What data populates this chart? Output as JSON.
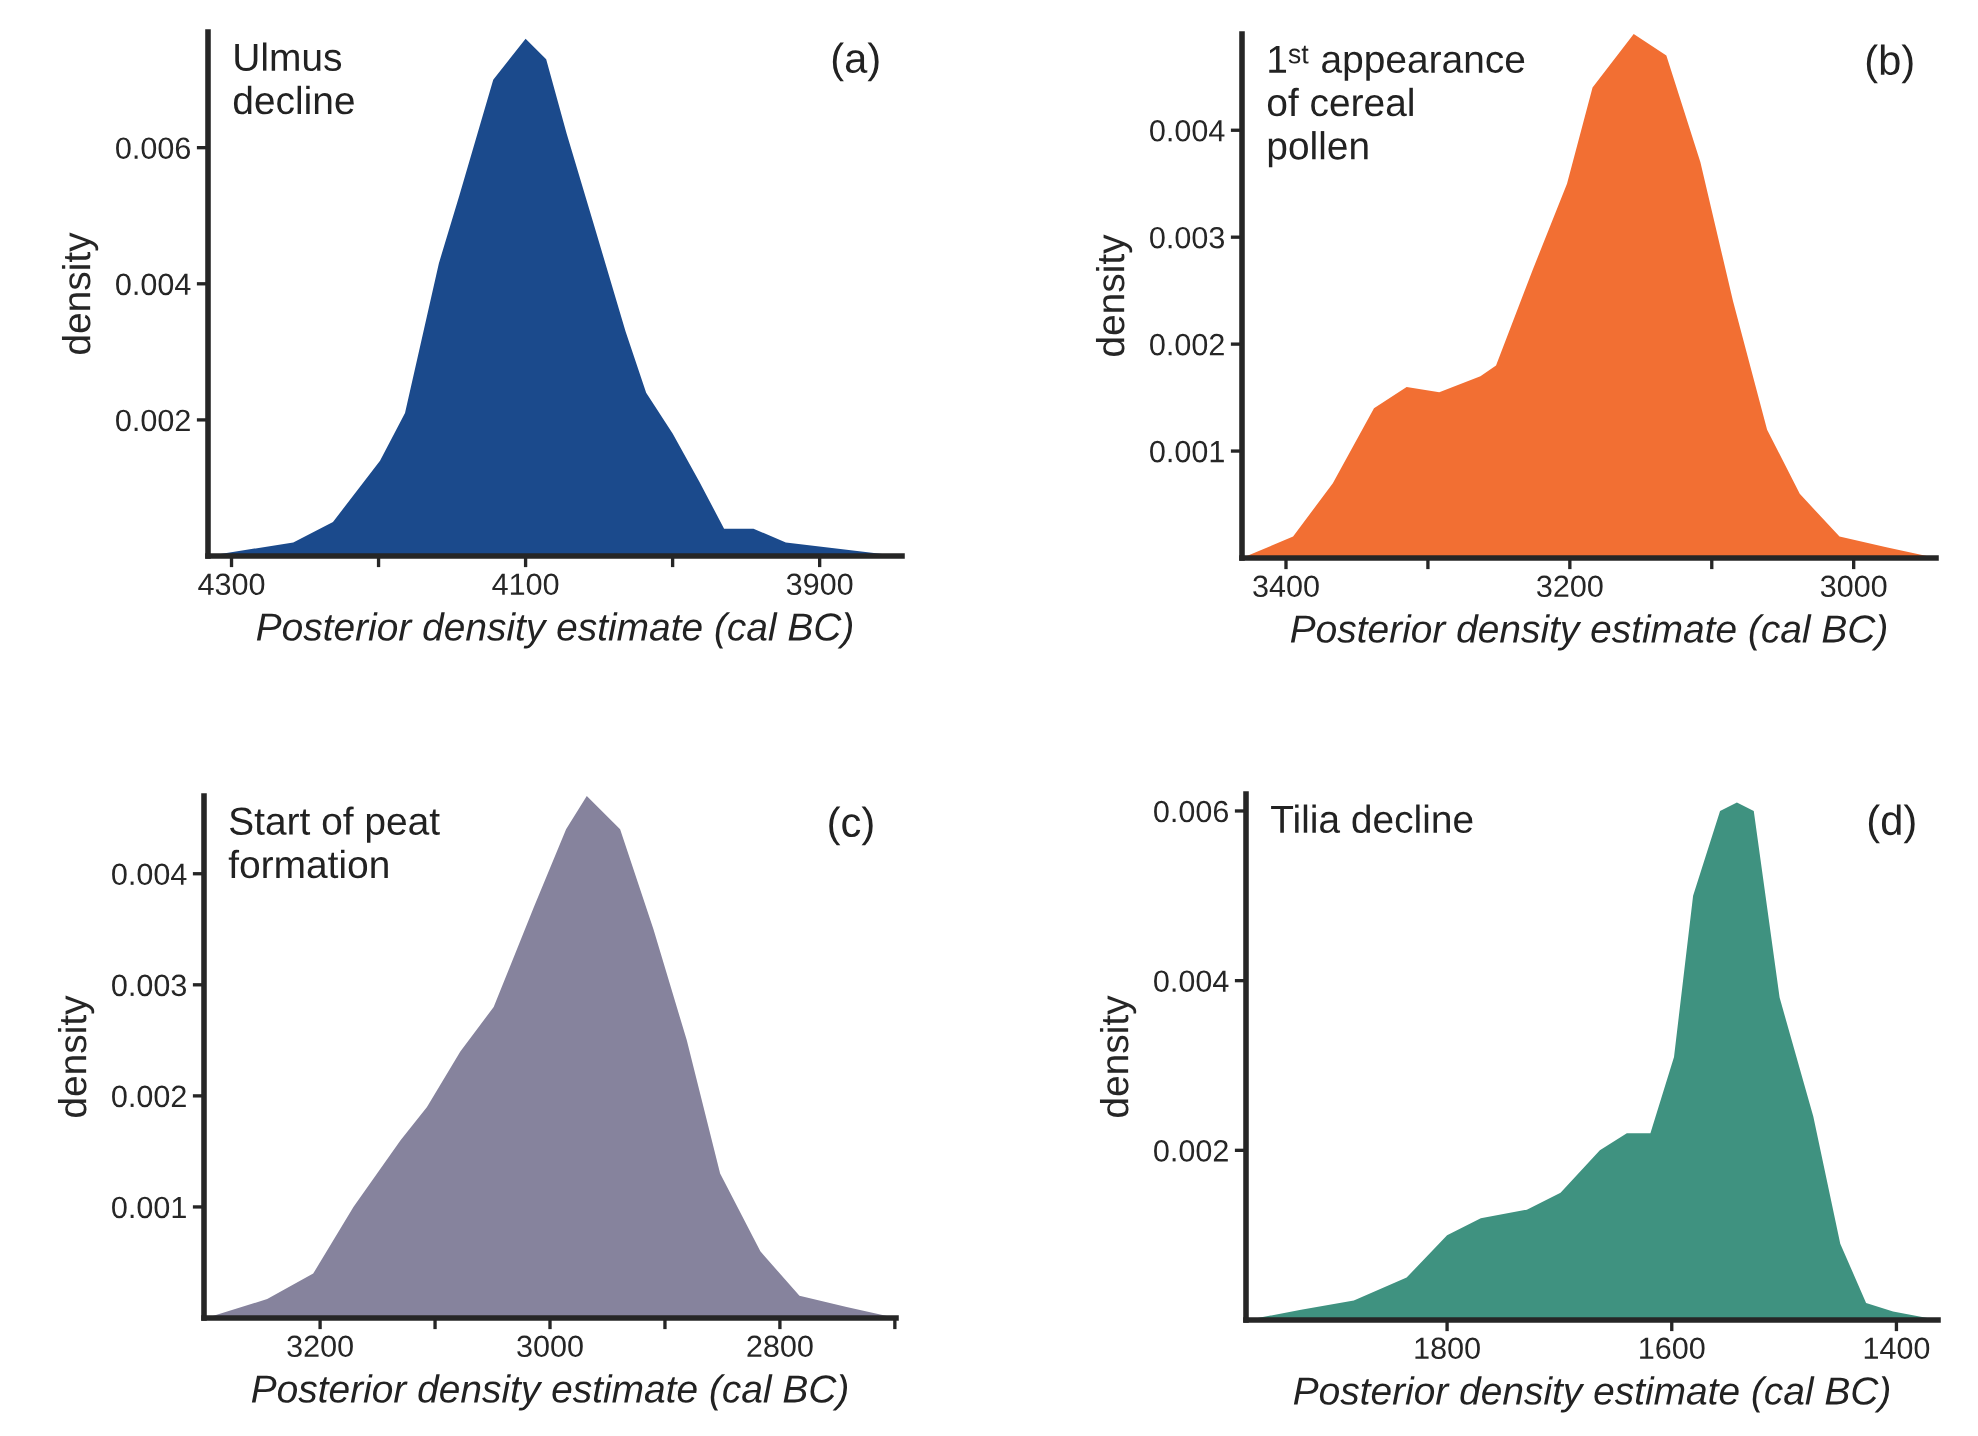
{
  "chart_data": [
    {
      "type": "area",
      "xlabel": "Posterior density estimate (cal BC)",
      "ylabel": "density",
      "annotations": [
        "(a)",
        "Ulmus\ndecline"
      ],
      "x": [
        4316,
        4258,
        4231,
        4199,
        4182,
        4159,
        4145,
        4122,
        4100,
        4086,
        4072,
        4054,
        4032,
        4018,
        4000,
        3982,
        3965,
        3945,
        3923,
        3846
      ],
      "series": [
        {
          "color": "#1b4a8c",
          "values": [
            0,
            0.0002,
            0.0005,
            0.0014,
            0.0021,
            0.0043,
            0.0053,
            0.007,
            0.0076,
            0.0073,
            0.0062,
            0.0049,
            0.0033,
            0.0024,
            0.0018,
            0.0011,
            0.0004,
            0.0004,
            0.0002,
            0
          ]
        }
      ],
      "xlim": [
        4316,
        3844
      ],
      "xticks": [
        4300,
        {
          "value": 4200,
          "label": null
        },
        4100,
        {
          "value": 4000,
          "label": null
        },
        3900
      ],
      "ylim": [
        0,
        0.0077
      ],
      "yticks": [
        0.002,
        0.004,
        0.006
      ],
      "grid": false,
      "legend": false
    },
    {
      "type": "area",
      "xlabel": "Posterior density estimate (cal BC)",
      "ylabel": "density",
      "annotations": [
        "(b)",
        "1ˢᵗ appearance\nof cereal\npollen"
      ],
      "x": [
        3431,
        3395,
        3367,
        3338,
        3315,
        3292,
        3263,
        3252,
        3226,
        3202,
        3184,
        3155,
        3132,
        3108,
        3085,
        3061,
        3038,
        3010,
        2977,
        2942
      ],
      "series": [
        {
          "color": "#f26f33",
          "values": [
            0,
            0.0002,
            0.0007,
            0.0014,
            0.0016,
            0.00155,
            0.0017,
            0.0018,
            0.0027,
            0.0035,
            0.0044,
            0.0049,
            0.0047,
            0.0037,
            0.0024,
            0.0012,
            0.0006,
            0.0002,
            0.0001,
            0
          ]
        }
      ],
      "xlim": [
        3431,
        2942
      ],
      "xticks": [
        3400,
        {
          "value": 3300,
          "label": null
        },
        3200,
        {
          "value": 3100,
          "label": null
        },
        3000
      ],
      "ylim": [
        0,
        0.0049
      ],
      "yticks": [
        0.001,
        0.002,
        0.003,
        0.004
      ],
      "grid": false,
      "legend": false
    },
    {
      "type": "area",
      "xlabel": "Posterior density estimate (cal BC)",
      "ylabel": "density",
      "annotations": [
        "(c)",
        "Start of peat\nformation"
      ],
      "x": [
        3299,
        3246,
        3206,
        3171,
        3130,
        3107,
        3078,
        3049,
        3014,
        2986,
        2968,
        2939,
        2910,
        2881,
        2852,
        2817,
        2783,
        2742,
        2699
      ],
      "series": [
        {
          "color": "#86839d",
          "values": [
            0,
            0.00017,
            0.0004,
            0.001,
            0.0016,
            0.0019,
            0.0024,
            0.0028,
            0.0037,
            0.0044,
            0.0047,
            0.0044,
            0.0035,
            0.0025,
            0.0013,
            0.0006,
            0.0002,
            0.0001,
            0
          ]
        }
      ],
      "xlim": [
        3301,
        2699
      ],
      "xticks": [
        3200,
        {
          "value": 3100,
          "label": null
        },
        3000,
        {
          "value": 2900,
          "label": null
        },
        2800,
        {
          "value": 2700,
          "label": null
        }
      ],
      "ylim": [
        0,
        0.0047
      ],
      "yticks": [
        0.001,
        0.002,
        0.003,
        0.004
      ],
      "grid": false,
      "legend": false
    },
    {
      "type": "area",
      "xlabel": "Posterior density estimate (cal BC)",
      "ylabel": "density",
      "annotations": [
        "(d)",
        "Tilia decline"
      ],
      "x": [
        1978,
        1930,
        1883,
        1836,
        1800,
        1770,
        1729,
        1699,
        1664,
        1640,
        1619,
        1598,
        1581,
        1557,
        1542,
        1527,
        1504,
        1474,
        1450,
        1427,
        1403,
        1363
      ],
      "series": [
        {
          "color": "#3f9280",
          "values": [
            0,
            0.00012,
            0.00023,
            0.0005,
            0.001,
            0.0012,
            0.0013,
            0.0015,
            0.002,
            0.0022,
            0.0022,
            0.0031,
            0.005,
            0.006,
            0.0061,
            0.006,
            0.0038,
            0.0024,
            0.0009,
            0.0002,
            0.0001,
            0
          ]
        }
      ],
      "xlim": [
        1979,
        1363
      ],
      "xticks": [
        1800,
        1600,
        1400
      ],
      "ylim": [
        0,
        0.0062
      ],
      "yticks": [
        0.002,
        0.004,
        0.006
      ],
      "grid": false,
      "legend": false
    }
  ]
}
